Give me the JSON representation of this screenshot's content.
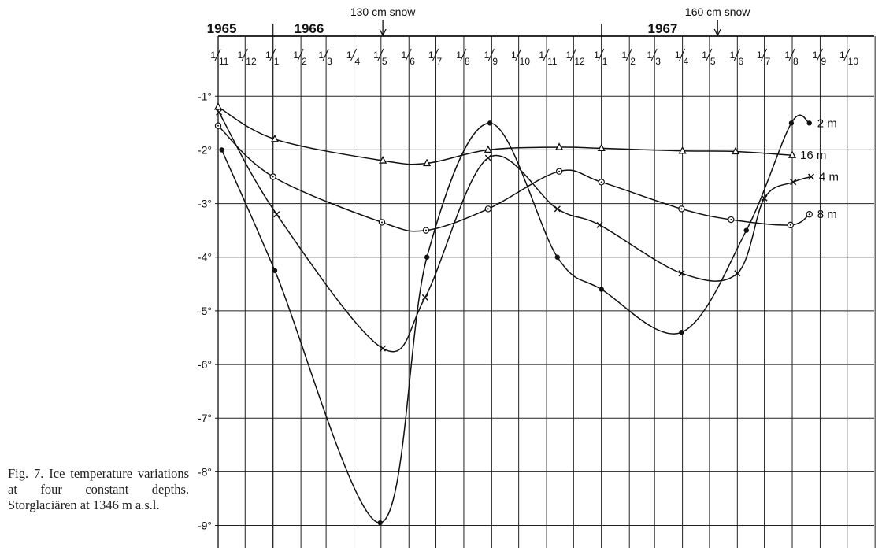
{
  "caption": "Fig. 7. Ice temperature variations at four constant depths. Storglaciären at 1346 m a.s.l.",
  "chart_data": {
    "type": "line",
    "title": "",
    "xlabel": "",
    "ylabel": "",
    "x_tick_labels": [
      "1/11",
      "1/12",
      "1/1",
      "1/2",
      "1/3",
      "1/4",
      "1/5",
      "1/6",
      "1/7",
      "1/8",
      "1/9",
      "1/10",
      "1/11",
      "1/12",
      "1/1",
      "1/2",
      "1/3",
      "1/4",
      "1/5",
      "1/6",
      "1/7",
      "1/8",
      "1/9",
      "1/10"
    ],
    "x_range": [
      "1965-11-01",
      "1967-10-31"
    ],
    "ylim": [
      -9.3,
      -0.6
    ],
    "y_ticks": [
      -1,
      -2,
      -3,
      -4,
      -5,
      -6,
      -7,
      -8,
      -9
    ],
    "y_tick_labels": [
      "-1°",
      "-2°",
      "-3°",
      "-4°",
      "-5°",
      "-6°",
      "-7°",
      "-8°",
      "-9°"
    ],
    "years": [
      {
        "label": "1965",
        "date": "1965-11-05"
      },
      {
        "label": "1966",
        "date": "1966-02-10"
      },
      {
        "label": "1967",
        "date": "1967-03-10"
      }
    ],
    "annotations": [
      {
        "text": "130 cm snow",
        "date": "1966-05-03"
      },
      {
        "text": "160 cm snow",
        "date": "1967-05-10"
      }
    ],
    "grid": true,
    "series": [
      {
        "name": "2 m",
        "marker": "dot",
        "points": [
          [
            "1965-11-05",
            -2.0
          ],
          [
            "1966-01-03",
            -4.25
          ],
          [
            "1966-04-30",
            -8.95
          ],
          [
            "1966-06-21",
            -4.0
          ],
          [
            "1966-08-30",
            -1.5
          ],
          [
            "1966-11-13",
            -4.0
          ],
          [
            "1967-01-01",
            -4.6
          ],
          [
            "1967-03-31",
            -5.4
          ],
          [
            "1967-06-11",
            -3.5
          ],
          [
            "1967-07-31",
            -1.5
          ],
          [
            "1967-08-20",
            -1.5
          ]
        ]
      },
      {
        "name": "16 m",
        "marker": "triangle",
        "points": [
          [
            "1965-11-01",
            -1.2
          ],
          [
            "1966-01-03",
            -1.8
          ],
          [
            "1966-05-03",
            -2.2
          ],
          [
            "1966-06-21",
            -2.25
          ],
          [
            "1966-08-28",
            -2.0
          ],
          [
            "1966-11-15",
            -1.95
          ],
          [
            "1967-01-01",
            -1.97
          ],
          [
            "1967-04-01",
            -2.02
          ],
          [
            "1967-05-30",
            -2.03
          ],
          [
            "1967-08-01",
            -2.1
          ]
        ]
      },
      {
        "name": "4 m",
        "marker": "cross",
        "points": [
          [
            "1965-11-02",
            -1.3
          ],
          [
            "1966-01-05",
            -3.2
          ],
          [
            "1966-05-03",
            -5.7
          ],
          [
            "1966-06-19",
            -4.75
          ],
          [
            "1966-08-28",
            -2.15
          ],
          [
            "1966-11-13",
            -3.1
          ],
          [
            "1966-12-30",
            -3.4
          ],
          [
            "1967-03-31",
            -4.3
          ],
          [
            "1967-06-01",
            -4.3
          ],
          [
            "1967-07-01",
            -2.9
          ],
          [
            "1967-08-02",
            -2.6
          ],
          [
            "1967-08-22",
            -2.5
          ]
        ]
      },
      {
        "name": "8 m",
        "marker": "circle",
        "points": [
          [
            "1965-11-01",
            -1.55
          ],
          [
            "1966-01-01",
            -2.5
          ],
          [
            "1966-05-02",
            -3.35
          ],
          [
            "1966-06-20",
            -3.5
          ],
          [
            "1966-08-28",
            -3.1
          ],
          [
            "1966-11-15",
            -2.4
          ],
          [
            "1967-01-01",
            -2.6
          ],
          [
            "1967-03-31",
            -3.1
          ],
          [
            "1967-05-25",
            -3.3
          ],
          [
            "1967-07-30",
            -3.4
          ],
          [
            "1967-08-20",
            -3.2
          ]
        ]
      }
    ]
  }
}
